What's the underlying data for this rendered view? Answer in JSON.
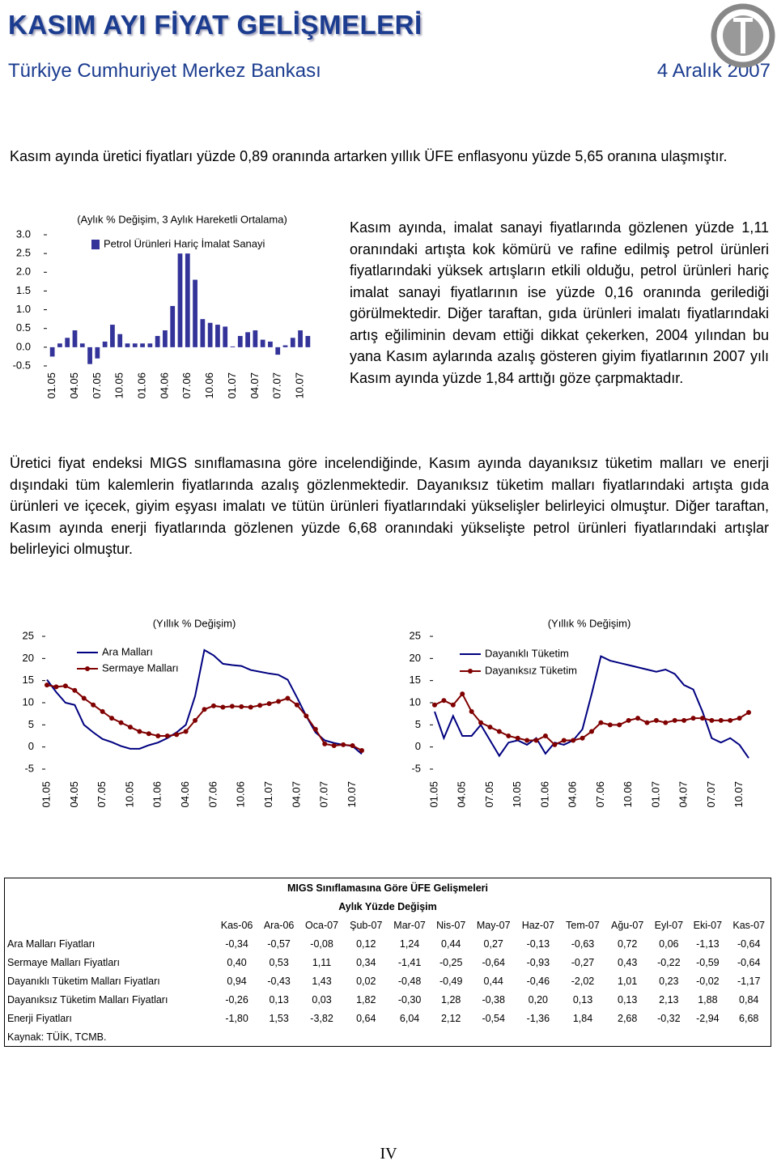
{
  "header": {
    "title": "KASIM AYI FİYAT GELİŞMELERİ",
    "subtitle": "Türkiye Cumhuriyet Merkez Bankası",
    "date": "4 Aralık 2007"
  },
  "intro": "Kasım ayında üretici fiyatları yüzde 0,89 oranında artarken yıllık ÜFE enflasyonu yüzde 5,65 oranına ulaşmıştır.",
  "paragraph_1": "Kasım ayında, imalat sanayi fiyatlarında gözlenen yüzde 1,11 oranındaki artışta kok kömürü ve rafine edilmiş petrol ürünleri fiyatlarındaki yüksek artışların etkili olduğu, petrol ürünleri hariç imalat sanayi fiyatlarının ise yüzde 0,16 oranında gerilediği görülmektedir. Diğer taraftan, gıda ürünleri imalatı fiyatlarındaki artış eğiliminin devam ettiği dikkat çekerken, 2004 yılından bu yana Kasım aylarında azalış gösteren giyim fiyatlarının 2007 yılı Kasım ayında yüzde 1,84 arttığı göze çarpmaktadır.",
  "paragraph_2": "Üretici fiyat endeksi MIGS sınıflamasına göre incelendiğinde, Kasım ayında dayanıksız tüketim malları ve enerji dışındaki tüm kalemlerin fiyatlarında azalış gözlenmektedir. Dayanıksız tüketim malları fiyatlarındaki artışta gıda ürünleri ve içecek, giyim eşyası imalatı ve tütün ürünleri fiyatlarındaki yükselişler belirleyici olmuştur. Diğer taraftan, Kasım ayında enerji fiyatlarında gözlenen yüzde 6,68 oranındaki yükselişte petrol ürünleri fiyatlarındaki artışlar belirleyici olmuştur.",
  "chart_data": [
    {
      "type": "bar",
      "title": "(Aylık % Değişim, 3 Aylık Hareketli Ortalama)",
      "categories": [
        "01.05",
        null,
        null,
        "04.05",
        null,
        null,
        "07.05",
        null,
        null,
        "10.05",
        null,
        null,
        "01.06",
        null,
        null,
        "04.06",
        null,
        null,
        "07.06",
        null,
        null,
        "10.06",
        null,
        null,
        "01.07",
        null,
        null,
        "04.07",
        null,
        null,
        "07.07",
        null,
        null,
        "10.07",
        null
      ],
      "series": [
        {
          "name": "Petrol Ürünleri Hariç İmalat Sanayi",
          "color": "#333399",
          "values": [
            -0.25,
            0.1,
            0.25,
            0.45,
            0.1,
            -0.45,
            -0.3,
            0.15,
            0.6,
            0.35,
            0.1,
            0.1,
            0.1,
            0.1,
            0.3,
            0.45,
            1.1,
            2.5,
            2.5,
            1.8,
            0.75,
            0.65,
            0.6,
            0.55,
            0.02,
            0.3,
            0.4,
            0.45,
            0.2,
            0.15,
            -0.2,
            0.05,
            0.25,
            0.45,
            0.3
          ]
        }
      ],
      "ylim": [
        -0.5,
        3
      ],
      "yticks": [
        {
          "value": 3,
          "label": "3.0"
        },
        {
          "value": 2.5,
          "label": "2.5"
        },
        {
          "value": 2,
          "label": "2.0"
        },
        {
          "value": 1.5,
          "label": "1.5"
        },
        {
          "value": 1,
          "label": "1.0"
        },
        {
          "value": 0.5,
          "label": "0.5"
        },
        {
          "value": 0,
          "label": "0.0"
        },
        -0.5
      ]
    },
    {
      "type": "line",
      "title": "(Yıllık % Değişim)",
      "categories": [
        "01.05",
        null,
        null,
        "04.05",
        null,
        null,
        "07.05",
        null,
        null,
        "10.05",
        null,
        null,
        "01.06",
        null,
        null,
        "04.06",
        null,
        null,
        "07.06",
        null,
        null,
        "10.06",
        null,
        null,
        "01.07",
        null,
        null,
        "04.07",
        null,
        null,
        "07.07",
        null,
        null,
        "10.07",
        null
      ],
      "series": [
        {
          "name": "Ara Malları",
          "color": "#000080",
          "values": [
            15.2,
            12.4,
            10,
            9.5,
            5,
            3.3,
            1.8,
            1.1,
            0.2,
            -0.4,
            -0.4,
            0.4,
            1,
            2,
            3.3,
            5,
            11.5,
            21.9,
            20.7,
            18.8,
            18.5,
            18.3,
            17.4,
            17,
            16.6,
            16.3,
            15.2,
            11.2,
            7,
            3.3,
            1.5,
            0.9,
            0.5,
            0.2,
            -1.6
          ]
        },
        {
          "name": "Sermaye Malları",
          "color": "#800000",
          "marker": "circle",
          "values": [
            14,
            13.6,
            13.8,
            12.8,
            11,
            9.5,
            8,
            6.5,
            5.5,
            4.5,
            3.5,
            3,
            2.5,
            2.5,
            2.8,
            3.5,
            6,
            8.5,
            9.3,
            9,
            9.2,
            9.1,
            9,
            9.4,
            9.8,
            10.3,
            11,
            9.5,
            7,
            4,
            0.7,
            0.3,
            0.5,
            0.3,
            -0.8
          ]
        }
      ],
      "ylim": [
        -5,
        25
      ],
      "yticks": [
        25,
        20,
        15,
        10,
        5,
        0,
        -5
      ]
    },
    {
      "type": "line",
      "title": "(Yıllık % Değişim)",
      "categories": [
        "01.05",
        null,
        null,
        "04.05",
        null,
        null,
        "07.05",
        null,
        null,
        "10.05",
        null,
        null,
        "01.06",
        null,
        null,
        "04.06",
        null,
        null,
        "07.06",
        null,
        null,
        "10.06",
        null,
        null,
        "01.07",
        null,
        null,
        "04.07",
        null,
        null,
        "07.07",
        null,
        null,
        "10.07",
        null
      ],
      "series": [
        {
          "name": "Dayanıklı Tüketim",
          "color": "#000080",
          "values": [
            8,
            2,
            7,
            2.5,
            2.5,
            5,
            1.5,
            -2,
            1,
            1.5,
            0.5,
            2,
            -1.5,
            1,
            0.5,
            1.5,
            4,
            12,
            20.5,
            19.5,
            19,
            18.5,
            18,
            17.5,
            17,
            17.5,
            16.5,
            14,
            13,
            8,
            2,
            1,
            2,
            0.5,
            -2.5
          ]
        },
        {
          "name": "Dayanıksız Tüketim",
          "color": "#800000",
          "marker": "circle",
          "values": [
            9.5,
            10.5,
            9.5,
            12,
            8,
            5.5,
            4.5,
            3.5,
            2.5,
            2,
            1.5,
            1.5,
            2.5,
            0.5,
            1.5,
            1.5,
            2,
            3.5,
            5.5,
            5,
            5,
            6,
            6.5,
            5.5,
            6,
            5.5,
            6,
            6,
            6.5,
            6.5,
            6,
            6,
            6,
            6.5,
            7.8
          ]
        }
      ],
      "ylim": [
        -5,
        25
      ],
      "yticks": [
        25,
        20,
        15,
        10,
        5,
        0,
        -5
      ]
    }
  ],
  "table": {
    "title": "MIGS Sınıflamasına Göre ÜFE Gelişmeleri",
    "subtitle": "Aylık Yüzde Değişim",
    "columns": [
      "Kas-06",
      "Ara-06",
      "Oca-07",
      "Şub-07",
      "Mar-07",
      "Nis-07",
      "May-07",
      "Haz-07",
      "Tem-07",
      "Ağu-07",
      "Eyl-07",
      "Eki-07",
      "Kas-07"
    ],
    "rows": [
      [
        "Ara Malları Fiyatları",
        "-0,34",
        "-0,57",
        "-0,08",
        "0,12",
        "1,24",
        "0,44",
        "0,27",
        "-0,13",
        "-0,63",
        "0,72",
        "0,06",
        "-1,13",
        "-0,64"
      ],
      [
        "Sermaye Malları Fiyatları",
        "0,40",
        "0,53",
        "1,11",
        "0,34",
        "-1,41",
        "-0,25",
        "-0,64",
        "-0,93",
        "-0,27",
        "0,43",
        "-0,22",
        "-0,59",
        "-0,64"
      ],
      [
        "Dayanıklı Tüketim Malları Fiyatları",
        "0,94",
        "-0,43",
        "1,43",
        "0,02",
        "-0,48",
        "-0,49",
        "0,44",
        "-0,46",
        "-2,02",
        "1,01",
        "0,23",
        "-0,02",
        "-1,17"
      ],
      [
        "Dayanıksız Tüketim Malları Fiyatları",
        "-0,26",
        "0,13",
        "0,03",
        "1,82",
        "-0,30",
        "1,28",
        "-0,38",
        "0,20",
        "0,13",
        "0,13",
        "2,13",
        "1,88",
        "0,84"
      ],
      [
        "Enerji Fiyatları",
        "-1,80",
        "1,53",
        "-3,82",
        "0,64",
        "6,04",
        "2,12",
        "-0,54",
        "-1,36",
        "1,84",
        "2,68",
        "-0,32",
        "-2,94",
        "6,68"
      ]
    ],
    "source": "Kaynak: TÜİK, TCMB."
  },
  "footer": {
    "page": "IV"
  }
}
